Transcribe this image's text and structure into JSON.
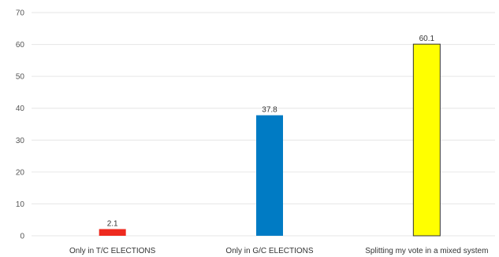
{
  "chart_data": {
    "type": "bar",
    "categories": [
      "Only in T/C ELECTIONS",
      "Only in G/C ELECTIONS",
      "Splitting my vote in a mixed system"
    ],
    "values": [
      2.1,
      37.8,
      60.1
    ],
    "data_labels": [
      "2.1",
      "37.8",
      "60.1"
    ],
    "colors": [
      "#ee2a1f",
      "#007bc4",
      "#ffff00"
    ],
    "bar_outline": [
      "none",
      "none",
      "#333333"
    ],
    "y_ticks": [
      "0",
      "10",
      "20",
      "30",
      "40",
      "50",
      "60",
      "70"
    ],
    "ylim": [
      0,
      70
    ],
    "grid": true,
    "legend": "none"
  }
}
